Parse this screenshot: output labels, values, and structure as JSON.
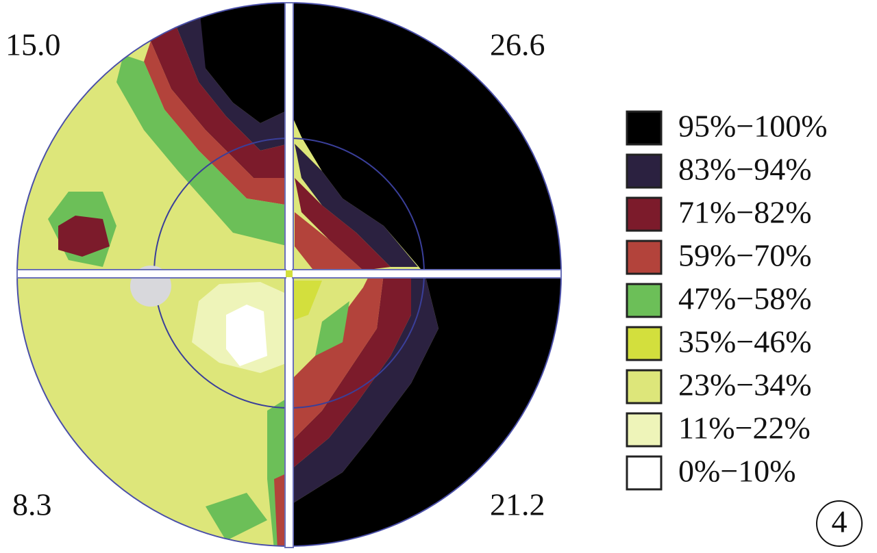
{
  "quadrants": {
    "top_left": "15.0",
    "top_right": "26.6",
    "bottom_left": "8.3",
    "bottom_right": "21.2"
  },
  "legend": [
    {
      "label": "95%−100%",
      "color": "#000000"
    },
    {
      "label": "83%−94%",
      "color": "#2b2140"
    },
    {
      "label": "71%−82%",
      "color": "#7c1b2b"
    },
    {
      "label": "59%−70%",
      "color": "#b3433b"
    },
    {
      "label": "47%−58%",
      "color": "#6cbf58"
    },
    {
      "label": "35%−46%",
      "color": "#d3df3d"
    },
    {
      "label": "23%−34%",
      "color": "#dde67a"
    },
    {
      "label": "11%−22%",
      "color": "#eef4b9"
    },
    {
      "label": "0%−10%",
      "color": "#ffffff"
    }
  ],
  "panel_label": "4"
}
